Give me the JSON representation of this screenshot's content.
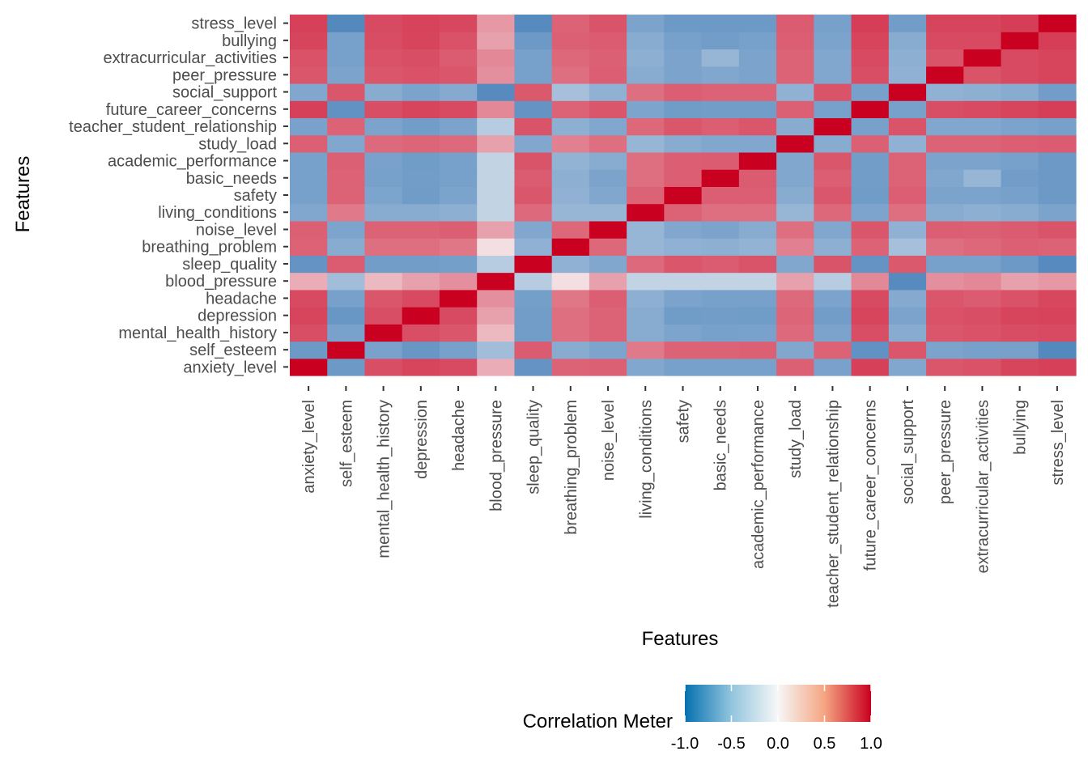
{
  "chart_data": {
    "type": "heatmap",
    "xlabel": "Features",
    "ylabel": "Features",
    "features": [
      "anxiety_level",
      "self_esteem",
      "mental_health_history",
      "depression",
      "headache",
      "blood_pressure",
      "sleep_quality",
      "breathing_problem",
      "noise_level",
      "living_conditions",
      "safety",
      "basic_needs",
      "academic_performance",
      "study_load",
      "teacher_student_relationship",
      "future_career_concerns",
      "social_support",
      "peer_pressure",
      "extracurricular_activities",
      "bullying",
      "stress_level"
    ],
    "matrix": [
      [
        1.0,
        -0.65,
        0.68,
        0.72,
        0.7,
        0.3,
        -0.68,
        0.6,
        0.61,
        -0.55,
        -0.6,
        -0.6,
        -0.6,
        0.61,
        -0.59,
        0.74,
        -0.55,
        0.65,
        0.67,
        0.72,
        0.74
      ],
      [
        -0.65,
        1.0,
        -0.59,
        -0.67,
        -0.6,
        -0.4,
        0.63,
        -0.52,
        -0.57,
        0.51,
        0.6,
        0.6,
        0.61,
        -0.55,
        0.6,
        -0.7,
        0.65,
        -0.58,
        -0.6,
        -0.6,
        -0.76
      ],
      [
        0.68,
        -0.59,
        1.0,
        0.68,
        0.65,
        0.25,
        -0.62,
        0.55,
        0.6,
        -0.52,
        -0.57,
        -0.6,
        -0.59,
        0.57,
        -0.58,
        0.68,
        -0.52,
        0.65,
        0.67,
        0.69,
        0.7
      ],
      [
        0.72,
        -0.67,
        0.68,
        1.0,
        0.7,
        0.35,
        -0.62,
        0.55,
        0.6,
        -0.52,
        -0.63,
        -0.62,
        -0.63,
        0.59,
        -0.62,
        0.72,
        -0.58,
        0.67,
        0.68,
        0.72,
        0.73
      ],
      [
        0.7,
        -0.6,
        0.65,
        0.7,
        1.0,
        0.42,
        -0.61,
        0.52,
        0.62,
        -0.5,
        -0.58,
        -0.6,
        -0.6,
        0.57,
        -0.58,
        0.7,
        -0.53,
        0.65,
        0.63,
        0.67,
        0.71
      ],
      [
        0.3,
        -0.4,
        0.25,
        0.35,
        0.42,
        1.0,
        -0.3,
        0.1,
        0.35,
        -0.25,
        -0.25,
        -0.25,
        -0.25,
        0.35,
        -0.3,
        0.45,
        -0.75,
        0.42,
        0.45,
        0.35,
        0.38
      ],
      [
        -0.68,
        0.63,
        -0.62,
        -0.62,
        -0.61,
        -0.3,
        1.0,
        -0.48,
        -0.55,
        0.57,
        0.65,
        0.63,
        0.66,
        -0.55,
        0.66,
        -0.68,
        0.64,
        -0.6,
        -0.6,
        -0.65,
        -0.75
      ],
      [
        0.6,
        -0.52,
        0.55,
        0.55,
        0.52,
        0.1,
        -0.48,
        1.0,
        0.58,
        -0.45,
        -0.48,
        -0.5,
        -0.47,
        0.48,
        -0.5,
        0.6,
        -0.38,
        0.55,
        0.58,
        0.61,
        0.6
      ],
      [
        0.61,
        -0.57,
        0.6,
        0.6,
        0.62,
        0.35,
        -0.55,
        0.58,
        1.0,
        -0.45,
        -0.55,
        -0.58,
        -0.52,
        0.55,
        -0.55,
        0.65,
        -0.48,
        0.62,
        0.61,
        0.63,
        0.66
      ],
      [
        -0.55,
        0.51,
        -0.52,
        -0.52,
        -0.5,
        -0.25,
        0.57,
        -0.45,
        -0.45,
        1.0,
        0.6,
        0.55,
        0.55,
        -0.45,
        0.58,
        -0.57,
        0.55,
        -0.52,
        -0.5,
        -0.52,
        -0.58
      ],
      [
        -0.6,
        0.6,
        -0.57,
        -0.63,
        -0.58,
        -0.25,
        0.65,
        -0.48,
        -0.55,
        0.6,
        1.0,
        0.62,
        0.62,
        -0.52,
        0.65,
        -0.63,
        0.62,
        -0.58,
        -0.58,
        -0.6,
        -0.65
      ],
      [
        -0.6,
        0.6,
        -0.6,
        -0.62,
        -0.6,
        -0.25,
        0.63,
        -0.5,
        -0.58,
        0.55,
        0.62,
        1.0,
        0.63,
        -0.55,
        0.62,
        -0.62,
        0.6,
        -0.55,
        -0.45,
        -0.62,
        -0.65
      ],
      [
        -0.6,
        0.61,
        -0.59,
        -0.63,
        -0.6,
        -0.25,
        0.66,
        -0.47,
        -0.52,
        0.55,
        0.62,
        0.63,
        1.0,
        -0.55,
        0.65,
        -0.62,
        0.6,
        -0.58,
        -0.58,
        -0.6,
        -0.65
      ],
      [
        0.61,
        -0.55,
        0.57,
        0.59,
        0.57,
        0.35,
        -0.55,
        0.48,
        0.55,
        -0.45,
        -0.52,
        -0.55,
        -0.55,
        1.0,
        -0.52,
        0.61,
        -0.48,
        0.6,
        0.6,
        0.62,
        0.63
      ],
      [
        -0.59,
        0.6,
        -0.58,
        -0.62,
        -0.58,
        -0.3,
        0.66,
        -0.5,
        -0.55,
        0.58,
        0.65,
        0.62,
        0.65,
        -0.52,
        1.0,
        -0.6,
        0.66,
        -0.55,
        -0.55,
        -0.58,
        -0.6
      ],
      [
        0.74,
        -0.7,
        0.68,
        0.72,
        0.7,
        0.45,
        -0.68,
        0.6,
        0.65,
        -0.57,
        -0.63,
        -0.62,
        -0.62,
        0.61,
        -0.6,
        1.0,
        -0.6,
        0.68,
        0.7,
        0.72,
        0.75
      ],
      [
        -0.55,
        0.65,
        -0.52,
        -0.58,
        -0.53,
        -0.75,
        0.64,
        -0.38,
        -0.48,
        0.55,
        0.62,
        0.6,
        0.6,
        -0.48,
        0.66,
        -0.6,
        1.0,
        -0.48,
        -0.5,
        -0.52,
        -0.62
      ],
      [
        0.65,
        -0.58,
        0.65,
        0.67,
        0.65,
        0.42,
        -0.6,
        0.55,
        0.62,
        -0.52,
        -0.58,
        -0.55,
        -0.58,
        0.6,
        -0.55,
        0.68,
        -0.48,
        1.0,
        0.66,
        0.7,
        0.72
      ],
      [
        0.67,
        -0.6,
        0.67,
        0.68,
        0.63,
        0.45,
        -0.6,
        0.58,
        0.61,
        -0.5,
        -0.58,
        -0.45,
        -0.58,
        0.6,
        -0.55,
        0.7,
        -0.5,
        0.66,
        1.0,
        0.7,
        0.72
      ],
      [
        0.72,
        -0.6,
        0.69,
        0.72,
        0.67,
        0.35,
        -0.65,
        0.61,
        0.63,
        -0.52,
        -0.6,
        -0.62,
        -0.6,
        0.62,
        -0.58,
        0.72,
        -0.52,
        0.7,
        0.7,
        1.0,
        0.75
      ],
      [
        0.74,
        -0.76,
        0.7,
        0.73,
        0.71,
        0.38,
        -0.75,
        0.6,
        0.66,
        -0.58,
        -0.65,
        -0.65,
        -0.65,
        0.63,
        -0.6,
        0.75,
        -0.62,
        0.72,
        0.72,
        0.75,
        1.0
      ]
    ],
    "legend": {
      "title": "Correlation Meter",
      "breaks": [
        "-1.0",
        "-0.5",
        "0.0",
        "0.5",
        "1.0"
      ],
      "limits": [
        -1,
        1
      ],
      "position": "bottom"
    },
    "colors": {
      "low": "#2166ac",
      "mid": "#f7f7f7",
      "high": "#ca0020"
    }
  }
}
